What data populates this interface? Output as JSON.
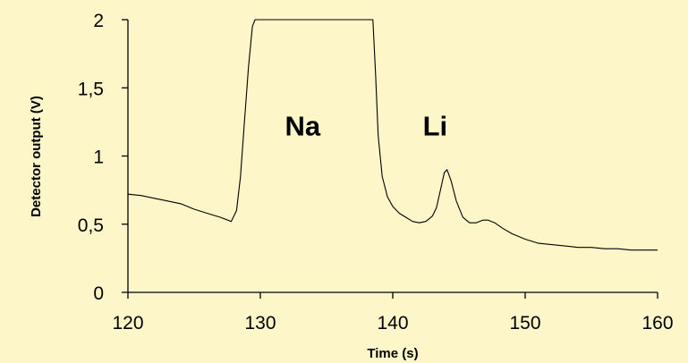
{
  "chart_data": {
    "type": "line",
    "title": "",
    "xlabel": "Time (s)",
    "ylabel": "Detector output (V)",
    "xlim": [
      120,
      160
    ],
    "ylim": [
      0,
      2
    ],
    "grid": false,
    "legend": "none",
    "x_ticks": [
      120,
      130,
      140,
      150,
      160
    ],
    "x_tick_labels": [
      "120",
      "130",
      "140",
      "150",
      "160"
    ],
    "y_ticks": [
      0,
      0.5,
      1,
      1.5,
      2
    ],
    "y_tick_labels": [
      "0",
      "0,5",
      "1",
      "1,5",
      "2"
    ],
    "annotations": [
      {
        "text": "Na",
        "x": 133.2,
        "y": 1.15
      },
      {
        "text": "Li",
        "x": 143.2,
        "y": 1.15
      }
    ],
    "background_color": "#fcf6c8",
    "line_color": "#000000",
    "series": [
      {
        "x": [
          120,
          121,
          122,
          123,
          124,
          125,
          126,
          127,
          127.8,
          128.2,
          128.5,
          128.8,
          129.1,
          129.4,
          129.6,
          138.5,
          138.7,
          138.9,
          139.2,
          139.6,
          140,
          140.5,
          141,
          141.5,
          142,
          142.5,
          143,
          143.3,
          143.6,
          143.9,
          144.1,
          144.4,
          144.8,
          145.3,
          145.8,
          146.3,
          146.8,
          147.2,
          147.7,
          148.3,
          149,
          150,
          151,
          152,
          153,
          154,
          155,
          156,
          157,
          158,
          159,
          160
        ],
        "y": [
          0.72,
          0.71,
          0.69,
          0.67,
          0.65,
          0.61,
          0.58,
          0.55,
          0.52,
          0.6,
          0.85,
          1.25,
          1.65,
          1.95,
          2.0,
          2.0,
          1.6,
          1.15,
          0.85,
          0.7,
          0.63,
          0.58,
          0.55,
          0.52,
          0.51,
          0.52,
          0.56,
          0.62,
          0.75,
          0.88,
          0.9,
          0.82,
          0.67,
          0.55,
          0.51,
          0.51,
          0.53,
          0.53,
          0.51,
          0.47,
          0.43,
          0.39,
          0.36,
          0.35,
          0.34,
          0.33,
          0.33,
          0.32,
          0.32,
          0.31,
          0.31,
          0.31
        ]
      }
    ]
  }
}
